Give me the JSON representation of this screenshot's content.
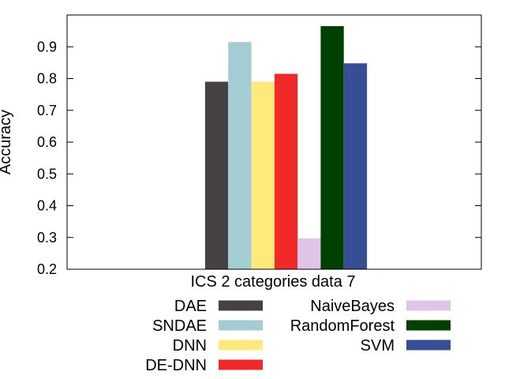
{
  "chart_data": {
    "type": "bar",
    "title": "",
    "xlabel": "ICS 2 categories data 7",
    "ylabel": "Accuracy",
    "ylim": [
      0.2,
      1.0
    ],
    "yticks": [
      "0.2",
      "0.3",
      "0.4",
      "0.5",
      "0.6",
      "0.7",
      "0.8",
      "0.9"
    ],
    "grid": false,
    "legend_position": "bottom",
    "categories": [
      "ICS 2 categories data 7"
    ],
    "series": [
      {
        "name": "DAE",
        "values": [
          0.79
        ],
        "color": "#454144"
      },
      {
        "name": "SNDAE",
        "values": [
          0.915
        ],
        "color": "#a3cdd3"
      },
      {
        "name": "DNN",
        "values": [
          0.79
        ],
        "color": "#ffe97a"
      },
      {
        "name": "DE-DNN",
        "values": [
          0.815
        ],
        "color": "#f22929"
      },
      {
        "name": "NaiveBayes",
        "values": [
          0.297
        ],
        "color": "#dfc4e7"
      },
      {
        "name": "RandomForest",
        "values": [
          0.965
        ],
        "color": "#004000"
      },
      {
        "name": "SVM",
        "values": [
          0.848
        ],
        "color": "#364e96"
      }
    ]
  }
}
